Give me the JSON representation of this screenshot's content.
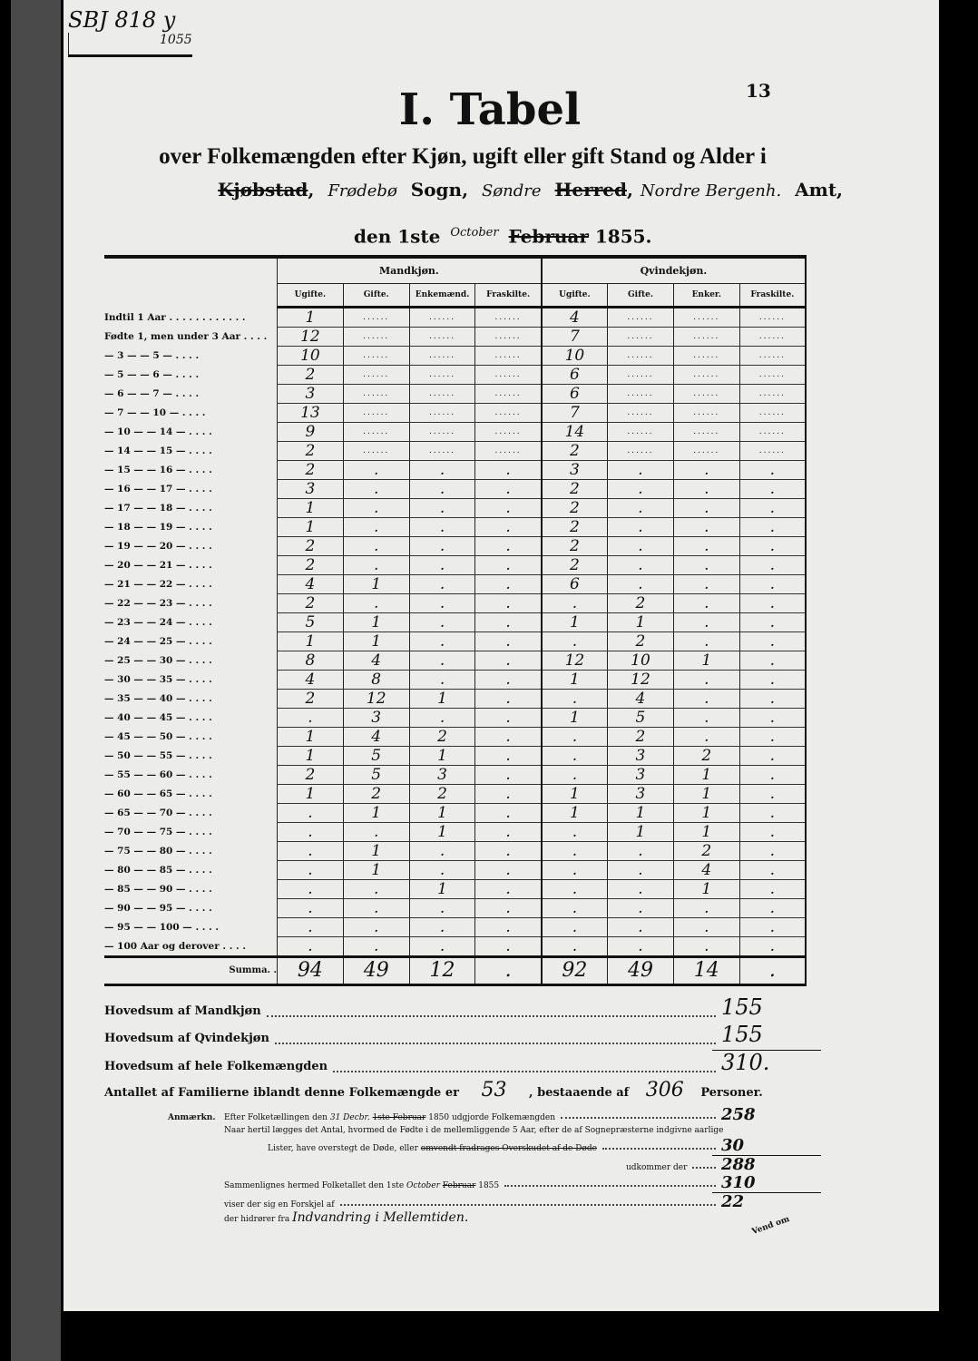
{
  "header": {
    "archive_note": "SBJ 818 y",
    "archive_note_sub": "1055",
    "page_number": "13",
    "title": "I. Tabel",
    "subtitle": "over Folkemængden efter Kjøn, ugift eller gift Stand og Alder i",
    "kjobstad_struck": "Kjøbstad",
    "parish_handwritten": "Frødebø",
    "sogn_label": "Sogn,",
    "herred_handwritten": "Søndre",
    "herred_struck": "Herred",
    "amt_handwritten": "Nordre Bergenh.",
    "amt_label": "Amt,",
    "date_prefix": "den 1ste",
    "date_month_struck": "Februar",
    "date_month_handwritten": "October",
    "date_year": "1855."
  },
  "table": {
    "groups": [
      "Mandkjøn.",
      "Qvindekjøn."
    ],
    "columns": [
      "Ugifte.",
      "Gifte.",
      "Enkemænd.",
      "Fraskilte.",
      "Ugifte.",
      "Gifte.",
      "Enker.",
      "Fraskilte."
    ],
    "rows": [
      {
        "label": "Indtil 1 Aar . . . . . . . . . . . .",
        "values": [
          "1",
          "......",
          "......",
          "......",
          "4",
          "......",
          "......",
          "......"
        ]
      },
      {
        "label": "Fødte 1, men under 3 Aar . . . .",
        "values": [
          "12",
          "......",
          "......",
          "......",
          "7",
          "......",
          "......",
          "......"
        ]
      },
      {
        "label": "— 3 — — 5 — . . . .",
        "values": [
          "10",
          "......",
          "......",
          "......",
          "10",
          "......",
          "......",
          "......"
        ]
      },
      {
        "label": "— 5 — — 6 — . . . .",
        "values": [
          "2",
          "......",
          "......",
          "......",
          "6",
          "......",
          "......",
          "......"
        ]
      },
      {
        "label": "— 6 — — 7 — . . . .",
        "values": [
          "3",
          "......",
          "......",
          "......",
          "6",
          "......",
          "......",
          "......"
        ]
      },
      {
        "label": "— 7 — — 10 — . . . .",
        "values": [
          "13",
          "......",
          "......",
          "......",
          "7",
          "......",
          "......",
          "......"
        ]
      },
      {
        "label": "— 10 — — 14 — . . . .",
        "values": [
          "9",
          "......",
          "......",
          "......",
          "14",
          "......",
          "......",
          "......"
        ]
      },
      {
        "label": "— 14 — — 15 — . . . .",
        "values": [
          "2",
          "......",
          "......",
          "......",
          "2",
          "......",
          "......",
          "......"
        ]
      },
      {
        "label": "— 15 — — 16 — . . . .",
        "values": [
          "2",
          ".",
          ".",
          ".",
          "3",
          ".",
          ".",
          "."
        ]
      },
      {
        "label": "— 16 — — 17 — . . . .",
        "values": [
          "3",
          ".",
          ".",
          ".",
          "2",
          ".",
          ".",
          "."
        ]
      },
      {
        "label": "— 17 — — 18 — . . . .",
        "values": [
          "1",
          ".",
          ".",
          ".",
          "2",
          ".",
          ".",
          "."
        ]
      },
      {
        "label": "— 18 — — 19 — . . . .",
        "values": [
          "1",
          ".",
          ".",
          ".",
          "2",
          ".",
          ".",
          "."
        ]
      },
      {
        "label": "— 19 — — 20 — . . . .",
        "values": [
          "2",
          ".",
          ".",
          ".",
          "2",
          ".",
          ".",
          "."
        ]
      },
      {
        "label": "— 20 — — 21 — . . . .",
        "values": [
          "2",
          ".",
          ".",
          ".",
          "2",
          ".",
          ".",
          "."
        ]
      },
      {
        "label": "— 21 — — 22 — . . . .",
        "values": [
          "4",
          "1",
          ".",
          ".",
          "6",
          ".",
          ".",
          "."
        ]
      },
      {
        "label": "— 22 — — 23 — . . . .",
        "values": [
          "2",
          ".",
          ".",
          ".",
          ".",
          "2",
          ".",
          "."
        ]
      },
      {
        "label": "— 23 — — 24 — . . . .",
        "values": [
          "5",
          "1",
          ".",
          ".",
          "1",
          "1",
          ".",
          "."
        ]
      },
      {
        "label": "— 24 — — 25 — . . . .",
        "values": [
          "1",
          "1",
          ".",
          ".",
          ".",
          "2",
          ".",
          "."
        ]
      },
      {
        "label": "— 25 — — 30 — . . . .",
        "values": [
          "8",
          "4",
          ".",
          ".",
          "12",
          "10",
          "1",
          "."
        ]
      },
      {
        "label": "— 30 — — 35 — . . . .",
        "values": [
          "4",
          "8",
          ".",
          ".",
          "1",
          "12",
          ".",
          "."
        ]
      },
      {
        "label": "— 35 — — 40 — . . . .",
        "values": [
          "2",
          "12",
          "1",
          ".",
          ".",
          "4",
          ".",
          "."
        ]
      },
      {
        "label": "— 40 — — 45 — . . . .",
        "values": [
          ".",
          "3",
          ".",
          ".",
          "1",
          "5",
          ".",
          "."
        ]
      },
      {
        "label": "— 45 — — 50 — . . . .",
        "values": [
          "1",
          "4",
          "2",
          ".",
          ".",
          "2",
          ".",
          "."
        ]
      },
      {
        "label": "— 50 — — 55 — . . . .",
        "values": [
          "1",
          "5",
          "1",
          ".",
          ".",
          "3",
          "2",
          "."
        ]
      },
      {
        "label": "— 55 — — 60 — . . . .",
        "values": [
          "2",
          "5",
          "3",
          ".",
          ".",
          "3",
          "1",
          "."
        ]
      },
      {
        "label": "— 60 — — 65 — . . . .",
        "values": [
          "1",
          "2",
          "2",
          ".",
          "1",
          "3",
          "1",
          "."
        ]
      },
      {
        "label": "— 65 — — 70 — . . . .",
        "values": [
          ".",
          "1",
          "1",
          ".",
          "1",
          "1",
          "1",
          "."
        ]
      },
      {
        "label": "— 70 — — 75 — . . . .",
        "values": [
          ".",
          ".",
          "1",
          ".",
          ".",
          "1",
          "1",
          "."
        ]
      },
      {
        "label": "— 75 — — 80 — . . . .",
        "values": [
          ".",
          "1",
          ".",
          ".",
          ".",
          ".",
          "2",
          "."
        ]
      },
      {
        "label": "— 80 — — 85 — . . . .",
        "values": [
          ".",
          "1",
          ".",
          ".",
          ".",
          ".",
          "4",
          "."
        ]
      },
      {
        "label": "— 85 — — 90 — . . . .",
        "values": [
          ".",
          ".",
          "1",
          ".",
          ".",
          ".",
          "1",
          "."
        ]
      },
      {
        "label": "— 90 — — 95 — . . . .",
        "values": [
          ".",
          ".",
          ".",
          ".",
          ".",
          ".",
          ".",
          "."
        ]
      },
      {
        "label": "— 95 — — 100 — . . . .",
        "values": [
          ".",
          ".",
          ".",
          ".",
          ".",
          ".",
          ".",
          "."
        ]
      },
      {
        "label": "— 100 Aar og derover . . . .",
        "values": [
          ".",
          ".",
          ".",
          ".",
          ".",
          ".",
          ".",
          "."
        ]
      }
    ],
    "summa_label": "Summa. .",
    "summa": [
      "94",
      "49",
      "12",
      ".",
      "92",
      "49",
      "14",
      "."
    ]
  },
  "totals": {
    "male_label": "Hovedsum af Mandkjøn",
    "male_value": "155",
    "female_label": "Hovedsum af Qvindekjøn",
    "female_value": "155",
    "all_label": "Hovedsum af hele Folkemængden",
    "all_value": "310.",
    "families_prefix": "Antallet af Familierne iblandt denne Folkemængde er",
    "families_value": "53",
    "families_mid": ", bestaaende af",
    "persons_value": "306",
    "persons_suffix": "Personer."
  },
  "remarks": {
    "label": "Anmærkn.",
    "line1_a": "Efter Folketællingen den",
    "line1_date_hand": "31 Decbr.",
    "line1_date_struck": "1ste Februar",
    "line1_b": "1850 udgjorde Folkemængden",
    "line1_value": "258",
    "line2": "Naar hertil lægges det Antal, hvormed de Fødte i de mellemliggende 5 Aar, efter de af Sognepræsterne indgivne aarlige",
    "line3_a": "Lister, have overstegt de Døde, eller",
    "line3_struck": "omvendt fradrages Overskudet af de Døde",
    "line3_value": "30",
    "line4": "udkommer der",
    "line4_value": "288",
    "line5_a": "Sammenlignes hermed Folketallet den 1ste",
    "line5_hand": "October",
    "line5_struck": "Februar",
    "line5_b": "1855",
    "line5_value": "310",
    "line6": "viser der sig en Forskjel af",
    "line6_value": "22",
    "line7": "der hidrører fra",
    "line7_hand": "Indvandring i Mellemtiden."
  },
  "footer": {
    "turn_note": "Vend om"
  }
}
